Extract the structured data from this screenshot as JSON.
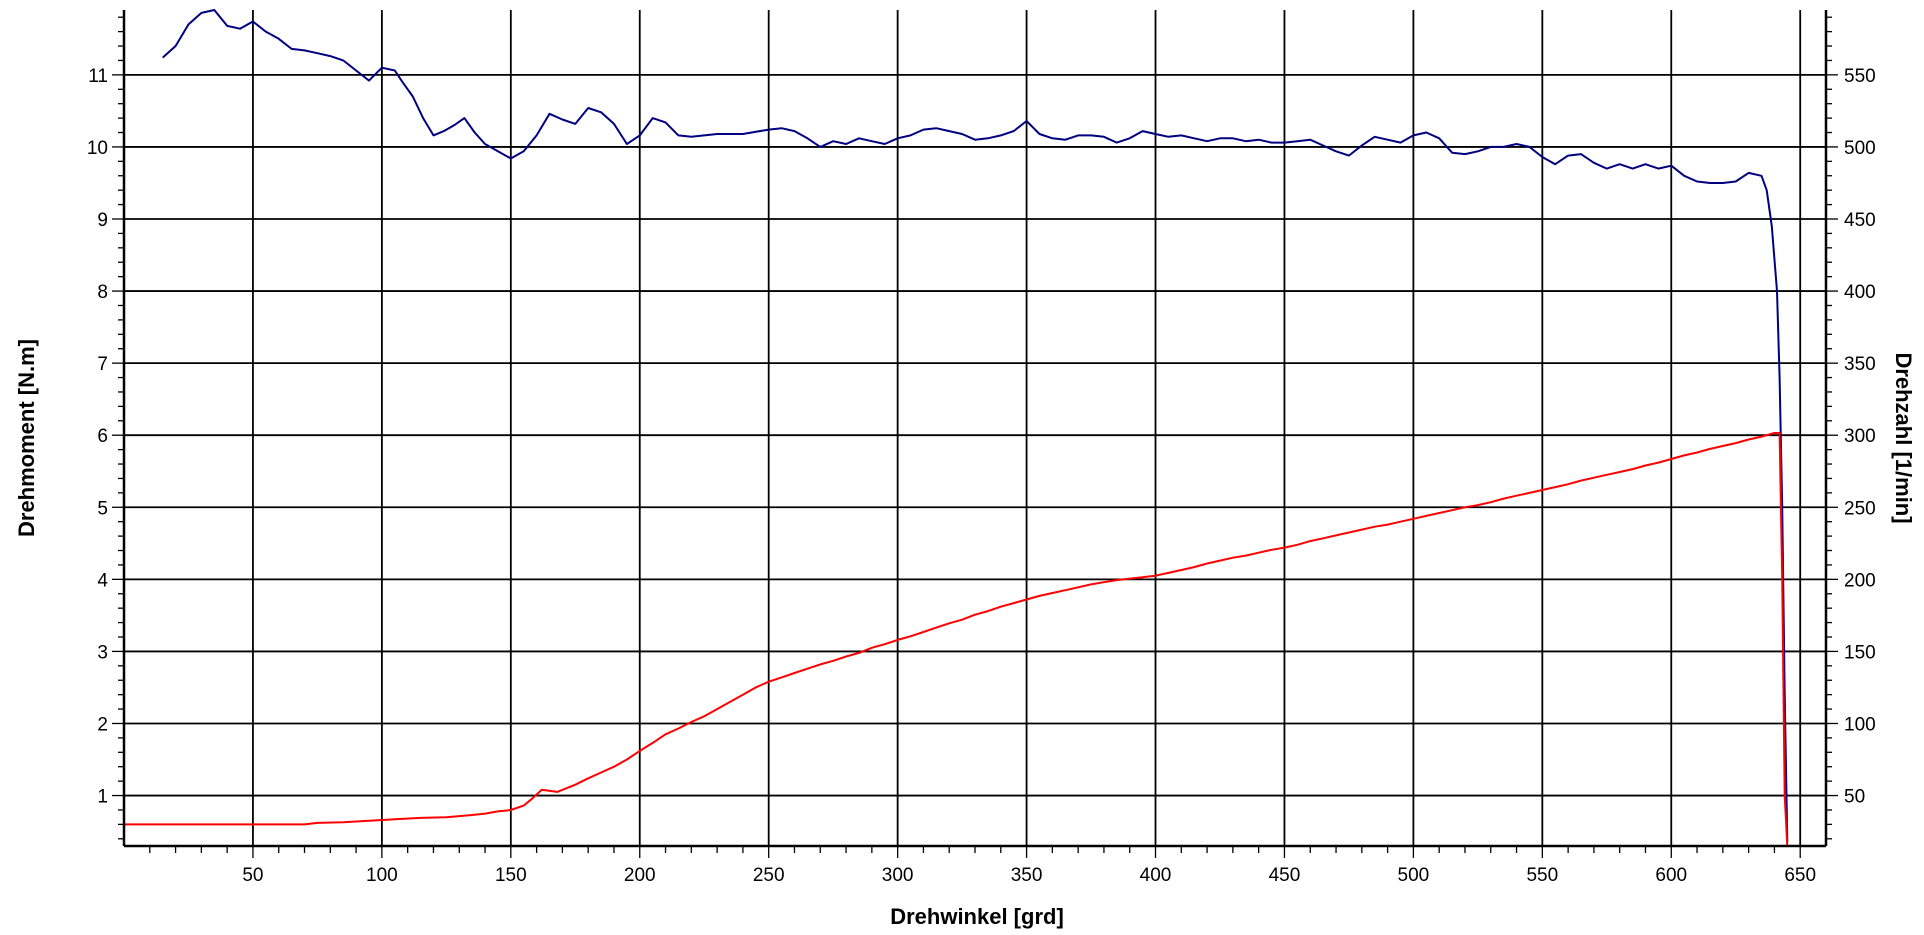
{
  "chart_data": {
    "type": "line",
    "title": "",
    "xlabel": "Drehwinkel  [grd]",
    "ylabel_left": "Drehmoment  [N.m]",
    "ylabel_right": "Drehzahl  [1/min]",
    "xlim": [
      0,
      660
    ],
    "ylim_left": [
      0.3,
      11.9
    ],
    "ylim_right": [
      15,
      595
    ],
    "x_ticks": [
      50,
      100,
      150,
      200,
      250,
      300,
      350,
      400,
      450,
      500,
      550,
      600,
      650
    ],
    "y_left_ticks": [
      1,
      2,
      3,
      4,
      5,
      6,
      7,
      8,
      9,
      10,
      11
    ],
    "y_right_ticks": [
      50,
      100,
      150,
      200,
      250,
      300,
      350,
      400,
      450,
      500,
      550
    ],
    "grid": true,
    "series": [
      {
        "axis": "right",
        "color": "#000080",
        "points": [
          [
            15,
            562
          ],
          [
            20,
            570
          ],
          [
            25,
            585
          ],
          [
            30,
            593
          ],
          [
            35,
            595
          ],
          [
            40,
            584
          ],
          [
            45,
            582
          ],
          [
            50,
            587
          ],
          [
            55,
            580
          ],
          [
            60,
            575
          ],
          [
            65,
            568
          ],
          [
            70,
            567
          ],
          [
            75,
            565
          ],
          [
            80,
            563
          ],
          [
            85,
            560
          ],
          [
            90,
            553
          ],
          [
            95,
            546
          ],
          [
            100,
            555
          ],
          [
            105,
            553
          ],
          [
            108,
            545
          ],
          [
            112,
            535
          ],
          [
            116,
            520
          ],
          [
            120,
            508
          ],
          [
            124,
            511
          ],
          [
            128,
            515
          ],
          [
            132,
            520
          ],
          [
            136,
            510
          ],
          [
            140,
            502
          ],
          [
            145,
            497
          ],
          [
            150,
            492
          ],
          [
            155,
            497
          ],
          [
            160,
            508
          ],
          [
            165,
            523
          ],
          [
            170,
            519
          ],
          [
            175,
            516
          ],
          [
            180,
            527
          ],
          [
            185,
            524
          ],
          [
            190,
            516
          ],
          [
            195,
            502
          ],
          [
            200,
            508
          ],
          [
            205,
            520
          ],
          [
            210,
            517
          ],
          [
            215,
            508
          ],
          [
            220,
            507
          ],
          [
            230,
            509
          ],
          [
            240,
            509
          ],
          [
            250,
            512
          ],
          [
            255,
            513
          ],
          [
            260,
            511
          ],
          [
            265,
            506
          ],
          [
            270,
            500
          ],
          [
            275,
            504
          ],
          [
            280,
            502
          ],
          [
            285,
            506
          ],
          [
            290,
            504
          ],
          [
            295,
            502
          ],
          [
            300,
            506
          ],
          [
            305,
            508
          ],
          [
            310,
            512
          ],
          [
            315,
            513
          ],
          [
            320,
            511
          ],
          [
            325,
            509
          ],
          [
            330,
            505
          ],
          [
            335,
            506
          ],
          [
            340,
            508
          ],
          [
            345,
            511
          ],
          [
            350,
            518
          ],
          [
            355,
            509
          ],
          [
            360,
            506
          ],
          [
            365,
            505
          ],
          [
            370,
            508
          ],
          [
            375,
            508
          ],
          [
            380,
            507
          ],
          [
            385,
            503
          ],
          [
            390,
            506
          ],
          [
            395,
            511
          ],
          [
            400,
            509
          ],
          [
            405,
            507
          ],
          [
            410,
            508
          ],
          [
            415,
            506
          ],
          [
            420,
            504
          ],
          [
            425,
            506
          ],
          [
            430,
            506
          ],
          [
            435,
            504
          ],
          [
            440,
            505
          ],
          [
            445,
            503
          ],
          [
            450,
            503
          ],
          [
            455,
            504
          ],
          [
            460,
            505
          ],
          [
            465,
            501
          ],
          [
            470,
            497
          ],
          [
            475,
            494
          ],
          [
            480,
            501
          ],
          [
            485,
            507
          ],
          [
            490,
            505
          ],
          [
            495,
            503
          ],
          [
            500,
            508
          ],
          [
            505,
            510
          ],
          [
            510,
            506
          ],
          [
            515,
            496
          ],
          [
            520,
            495
          ],
          [
            525,
            497
          ],
          [
            530,
            500
          ],
          [
            535,
            500
          ],
          [
            540,
            502
          ],
          [
            545,
            500
          ],
          [
            550,
            493
          ],
          [
            555,
            488
          ],
          [
            560,
            494
          ],
          [
            565,
            495
          ],
          [
            570,
            489
          ],
          [
            575,
            485
          ],
          [
            580,
            488
          ],
          [
            585,
            485
          ],
          [
            590,
            488
          ],
          [
            595,
            485
          ],
          [
            600,
            487
          ],
          [
            605,
            480
          ],
          [
            610,
            476
          ],
          [
            615,
            475
          ],
          [
            620,
            475
          ],
          [
            625,
            476
          ],
          [
            630,
            482
          ],
          [
            635,
            480
          ],
          [
            637,
            470
          ],
          [
            639,
            445
          ],
          [
            641,
            400
          ],
          [
            642,
            340
          ],
          [
            643,
            250
          ],
          [
            644,
            120
          ],
          [
            645,
            18
          ]
        ]
      },
      {
        "axis": "left",
        "color": "#ff0000",
        "points": [
          [
            0,
            0.6
          ],
          [
            70,
            0.6
          ],
          [
            75,
            0.62
          ],
          [
            85,
            0.63
          ],
          [
            95,
            0.65
          ],
          [
            105,
            0.67
          ],
          [
            115,
            0.69
          ],
          [
            125,
            0.7
          ],
          [
            135,
            0.73
          ],
          [
            140,
            0.75
          ],
          [
            145,
            0.78
          ],
          [
            150,
            0.8
          ],
          [
            155,
            0.86
          ],
          [
            158,
            0.95
          ],
          [
            162,
            1.08
          ],
          [
            168,
            1.05
          ],
          [
            175,
            1.15
          ],
          [
            180,
            1.24
          ],
          [
            185,
            1.32
          ],
          [
            190,
            1.4
          ],
          [
            195,
            1.5
          ],
          [
            200,
            1.62
          ],
          [
            205,
            1.73
          ],
          [
            210,
            1.85
          ],
          [
            215,
            1.93
          ],
          [
            220,
            2.02
          ],
          [
            225,
            2.1
          ],
          [
            230,
            2.2
          ],
          [
            235,
            2.3
          ],
          [
            240,
            2.4
          ],
          [
            245,
            2.5
          ],
          [
            250,
            2.58
          ],
          [
            255,
            2.64
          ],
          [
            260,
            2.7
          ],
          [
            265,
            2.76
          ],
          [
            270,
            2.82
          ],
          [
            275,
            2.87
          ],
          [
            280,
            2.93
          ],
          [
            285,
            2.98
          ],
          [
            290,
            3.05
          ],
          [
            295,
            3.1
          ],
          [
            300,
            3.16
          ],
          [
            305,
            3.21
          ],
          [
            310,
            3.27
          ],
          [
            315,
            3.33
          ],
          [
            320,
            3.39
          ],
          [
            325,
            3.44
          ],
          [
            330,
            3.51
          ],
          [
            335,
            3.56
          ],
          [
            340,
            3.62
          ],
          [
            345,
            3.67
          ],
          [
            350,
            3.72
          ],
          [
            355,
            3.77
          ],
          [
            360,
            3.81
          ],
          [
            365,
            3.85
          ],
          [
            370,
            3.89
          ],
          [
            375,
            3.93
          ],
          [
            380,
            3.96
          ],
          [
            385,
            3.99
          ],
          [
            390,
            4.01
          ],
          [
            395,
            4.03
          ],
          [
            400,
            4.05
          ],
          [
            405,
            4.09
          ],
          [
            410,
            4.13
          ],
          [
            415,
            4.17
          ],
          [
            420,
            4.22
          ],
          [
            425,
            4.26
          ],
          [
            430,
            4.3
          ],
          [
            435,
            4.33
          ],
          [
            440,
            4.37
          ],
          [
            445,
            4.41
          ],
          [
            450,
            4.44
          ],
          [
            455,
            4.48
          ],
          [
            460,
            4.53
          ],
          [
            465,
            4.57
          ],
          [
            470,
            4.61
          ],
          [
            475,
            4.65
          ],
          [
            480,
            4.69
          ],
          [
            485,
            4.73
          ],
          [
            490,
            4.76
          ],
          [
            495,
            4.8
          ],
          [
            500,
            4.84
          ],
          [
            505,
            4.88
          ],
          [
            510,
            4.92
          ],
          [
            515,
            4.96
          ],
          [
            520,
            5.0
          ],
          [
            525,
            5.03
          ],
          [
            530,
            5.07
          ],
          [
            535,
            5.12
          ],
          [
            540,
            5.16
          ],
          [
            545,
            5.2
          ],
          [
            550,
            5.24
          ],
          [
            555,
            5.28
          ],
          [
            560,
            5.32
          ],
          [
            565,
            5.37
          ],
          [
            570,
            5.41
          ],
          [
            575,
            5.45
          ],
          [
            580,
            5.49
          ],
          [
            585,
            5.53
          ],
          [
            590,
            5.58
          ],
          [
            595,
            5.62
          ],
          [
            600,
            5.67
          ],
          [
            605,
            5.72
          ],
          [
            610,
            5.76
          ],
          [
            615,
            5.81
          ],
          [
            620,
            5.85
          ],
          [
            625,
            5.89
          ],
          [
            630,
            5.94
          ],
          [
            635,
            5.98
          ],
          [
            640,
            6.03
          ],
          [
            642,
            6.03
          ],
          [
            643,
            4.0
          ],
          [
            644,
            1.0
          ],
          [
            645,
            0.3
          ]
        ]
      }
    ]
  }
}
